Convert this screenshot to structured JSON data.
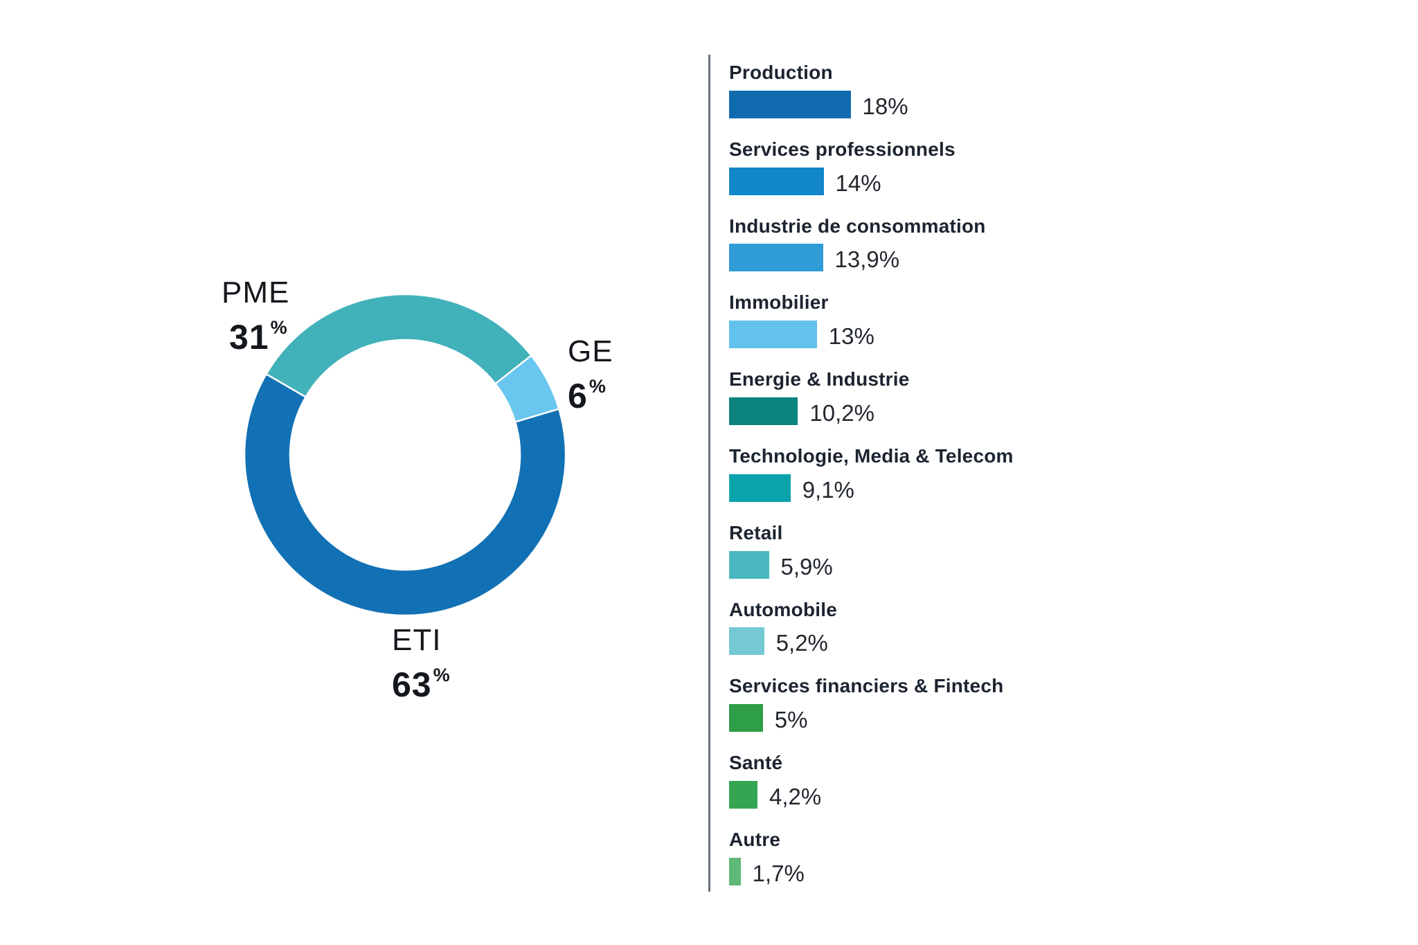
{
  "chart_data": [
    {
      "type": "pie",
      "subtype": "donut",
      "title": "",
      "start_angle_deg": 300.2,
      "percent_symbol": "%",
      "segments": [
        {
          "label": "PME",
          "value": 31,
          "display": "31",
          "color": "#41b1ba"
        },
        {
          "label": "GE",
          "value": 6,
          "display": "6",
          "color": "#68c6ef"
        },
        {
          "label": "ETI",
          "value": 63,
          "display": "63",
          "color": "#1271b5"
        }
      ]
    },
    {
      "type": "bar",
      "orientation": "horizontal",
      "title": "",
      "xlabel": "",
      "ylabel": "",
      "xlim": [
        0,
        18
      ],
      "grid": false,
      "legend_position": "none",
      "categories": [
        "Production",
        "Services professionnels",
        "Industrie de consommation",
        "Immobilier",
        "Energie & Industrie",
        "Technologie, Media & Telecom",
        "Retail",
        "Automobile",
        "Services financiers & Fintech",
        "Santé",
        "Autre"
      ],
      "values": [
        18,
        14,
        13.9,
        13,
        10.2,
        9.1,
        5.9,
        5.2,
        5,
        4.2,
        1.7
      ],
      "value_labels": [
        "18%",
        "14%",
        "13,9%",
        "13%",
        "10,2%",
        "9,1%",
        "5,9%",
        "5,2%",
        "5%",
        "4,2%",
        "1,7%"
      ],
      "colors": [
        "#0f6bae",
        "#1187c9",
        "#2f9bd7",
        "#62c2ed",
        "#0c837e",
        "#0aa2ab",
        "#49b8bf",
        "#74c9d4",
        "#2f9e48",
        "#35a551",
        "#5fb876"
      ]
    }
  ]
}
